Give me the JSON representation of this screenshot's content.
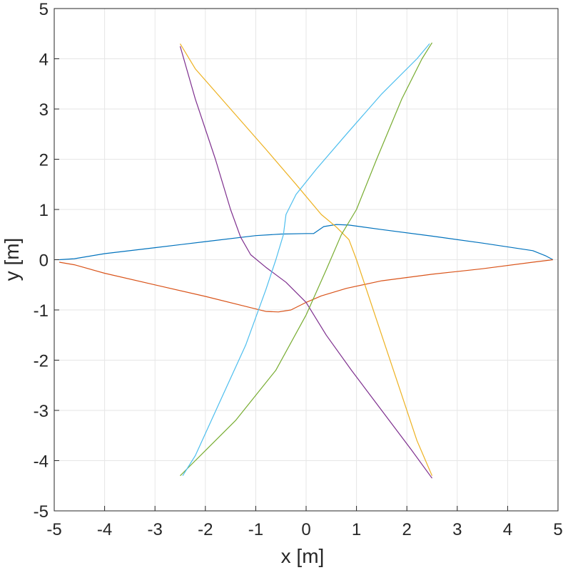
{
  "chart_data": {
    "type": "line",
    "title": "",
    "xlabel": "x [m]",
    "ylabel": "y [m]",
    "xlim": [
      -5,
      5
    ],
    "ylim": [
      -5,
      5
    ],
    "xticks": [
      "-5",
      "-4",
      "-3",
      "-2",
      "-1",
      "0",
      "1",
      "2",
      "3",
      "4",
      "5"
    ],
    "yticks": [
      "-5",
      "-4",
      "-3",
      "-2",
      "-1",
      "0",
      "1",
      "2",
      "3",
      "4",
      "5"
    ],
    "grid": true,
    "legend": "none",
    "series": [
      {
        "color": "#0072BD",
        "points": [
          [
            -4.9,
            0.0
          ],
          [
            -4.6,
            0.02
          ],
          [
            -4.0,
            0.12
          ],
          [
            -3.0,
            0.24
          ],
          [
            -2.0,
            0.36
          ],
          [
            -1.0,
            0.48
          ],
          [
            -0.5,
            0.51
          ],
          [
            0.0,
            0.52
          ],
          [
            0.15,
            0.52
          ],
          [
            0.35,
            0.66
          ],
          [
            0.6,
            0.7
          ],
          [
            0.85,
            0.69
          ],
          [
            1.5,
            0.6
          ],
          [
            2.5,
            0.47
          ],
          [
            3.5,
            0.33
          ],
          [
            4.5,
            0.18
          ],
          [
            4.75,
            0.08
          ],
          [
            4.9,
            0.0
          ]
        ]
      },
      {
        "color": "#D95319",
        "points": [
          [
            -4.9,
            -0.05
          ],
          [
            -4.6,
            -0.1
          ],
          [
            -4.0,
            -0.27
          ],
          [
            -3.0,
            -0.5
          ],
          [
            -2.0,
            -0.73
          ],
          [
            -1.2,
            -0.93
          ],
          [
            -0.8,
            -1.03
          ],
          [
            -0.55,
            -1.04
          ],
          [
            -0.3,
            -1.0
          ],
          [
            0.0,
            -0.85
          ],
          [
            0.3,
            -0.72
          ],
          [
            0.8,
            -0.57
          ],
          [
            1.5,
            -0.42
          ],
          [
            2.5,
            -0.29
          ],
          [
            3.5,
            -0.18
          ],
          [
            4.5,
            -0.05
          ],
          [
            4.9,
            0.0
          ]
        ]
      },
      {
        "color": "#EDB120",
        "points": [
          [
            -2.5,
            4.3
          ],
          [
            -2.2,
            3.8
          ],
          [
            -1.5,
            3.0
          ],
          [
            -0.8,
            2.2
          ],
          [
            -0.2,
            1.5
          ],
          [
            0.3,
            0.9
          ],
          [
            0.6,
            0.65
          ],
          [
            0.85,
            0.4
          ],
          [
            1.0,
            0.0
          ],
          [
            1.4,
            -1.2
          ],
          [
            1.8,
            -2.4
          ],
          [
            2.2,
            -3.6
          ],
          [
            2.5,
            -4.3
          ]
        ]
      },
      {
        "color": "#7E2F8E",
        "points": [
          [
            -2.5,
            4.25
          ],
          [
            -2.2,
            3.2
          ],
          [
            -1.8,
            2.0
          ],
          [
            -1.5,
            1.0
          ],
          [
            -1.3,
            0.45
          ],
          [
            -1.1,
            0.1
          ],
          [
            -0.8,
            -0.15
          ],
          [
            -0.4,
            -0.45
          ],
          [
            0.0,
            -0.85
          ],
          [
            0.4,
            -1.5
          ],
          [
            0.9,
            -2.2
          ],
          [
            1.5,
            -3.0
          ],
          [
            2.1,
            -3.8
          ],
          [
            2.5,
            -4.35
          ]
        ]
      },
      {
        "color": "#77AC30",
        "points": [
          [
            -2.5,
            -4.3
          ],
          [
            -2.2,
            -4.0
          ],
          [
            -1.4,
            -3.2
          ],
          [
            -0.6,
            -2.2
          ],
          [
            0.0,
            -1.1
          ],
          [
            0.4,
            -0.2
          ],
          [
            0.7,
            0.5
          ],
          [
            1.0,
            1.0
          ],
          [
            1.4,
            2.0
          ],
          [
            1.9,
            3.2
          ],
          [
            2.3,
            4.0
          ],
          [
            2.5,
            4.32
          ]
        ]
      },
      {
        "color": "#4DBEEE",
        "points": [
          [
            -2.45,
            -4.3
          ],
          [
            -2.2,
            -3.9
          ],
          [
            -1.7,
            -2.8
          ],
          [
            -1.2,
            -1.7
          ],
          [
            -0.8,
            -0.6
          ],
          [
            -0.6,
            0.0
          ],
          [
            -0.45,
            0.5
          ],
          [
            -0.4,
            0.9
          ],
          [
            -0.2,
            1.3
          ],
          [
            0.2,
            1.8
          ],
          [
            0.8,
            2.5
          ],
          [
            1.5,
            3.3
          ],
          [
            2.2,
            4.0
          ],
          [
            2.45,
            4.3
          ]
        ]
      }
    ]
  }
}
